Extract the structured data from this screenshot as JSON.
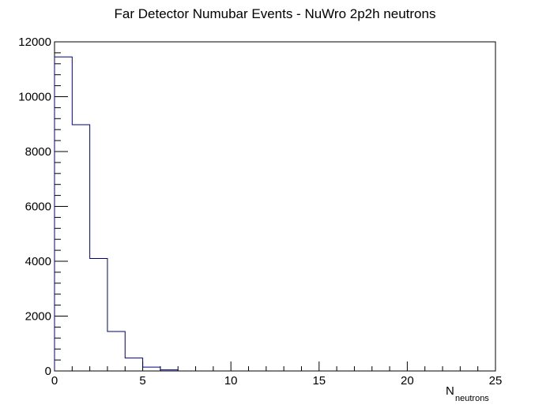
{
  "chart_data": {
    "type": "histogram",
    "title": "Far Detector Numubar Events - NuWro 2p2h neutrons",
    "xlabel": {
      "main": "N",
      "subscript": "neutrons"
    },
    "ylabel": "",
    "xlim": [
      0,
      25
    ],
    "ylim": [
      0,
      12000
    ],
    "x_ticks": [
      0,
      5,
      10,
      15,
      20,
      25
    ],
    "x_tick_labels": [
      "0",
      "5",
      "10",
      "15",
      "20",
      "25"
    ],
    "y_ticks": [
      0,
      2000,
      4000,
      6000,
      8000,
      10000,
      12000
    ],
    "y_tick_labels": [
      "0",
      "2000",
      "4000",
      "6000",
      "8000",
      "10000",
      "12000"
    ],
    "bin_width": 1,
    "bin_edges": [
      0,
      1,
      2,
      3,
      4,
      5,
      6,
      7
    ],
    "counts": [
      11450,
      8980,
      4100,
      1440,
      470,
      140,
      40
    ],
    "grid": false,
    "legend": "none",
    "line_color": "#00007f"
  }
}
